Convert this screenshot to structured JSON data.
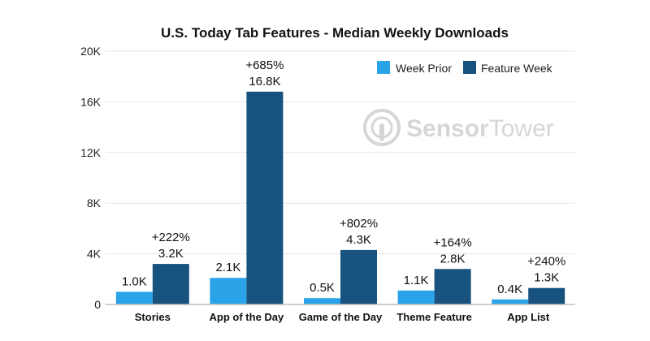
{
  "colors": {
    "week_prior": "#2aa3e8",
    "feature_week": "#17537e",
    "gridline": "#e6e6e6",
    "axis": "#bfbfbf",
    "watermark": "#d6d6d6"
  },
  "watermark": {
    "brand_bold": "Sensor",
    "brand_light": "Tower",
    "icon": "sensor-tower-logo-icon"
  },
  "chart_data": {
    "type": "bar",
    "title": "U.S. Today Tab Features - Median Weekly Downloads",
    "xlabel": "",
    "ylabel": "",
    "ylim": [
      0,
      20000
    ],
    "yticks": [
      0,
      4000,
      8000,
      12000,
      16000,
      20000
    ],
    "ytick_labels": [
      "0",
      "4K",
      "8K",
      "12K",
      "16K",
      "20K"
    ],
    "grid": true,
    "legend_position": "top-right",
    "categories": [
      "Stories",
      "App of the Day",
      "Game of the Day",
      "Theme Feature",
      "App List"
    ],
    "series": [
      {
        "name": "Week Prior",
        "values": [
          1000,
          2100,
          500,
          1100,
          400
        ],
        "labels": [
          "1.0K",
          "2.1K",
          "0.5K",
          "1.1K",
          "0.4K"
        ]
      },
      {
        "name": "Feature Week",
        "values": [
          3200,
          16800,
          4300,
          2800,
          1300
        ],
        "labels": [
          "3.2K",
          "16.8K",
          "4.3K",
          "2.8K",
          "1.3K"
        ]
      }
    ],
    "change_labels": [
      "+222%",
      "+685%",
      "+802%",
      "+164%",
      "+240%"
    ]
  }
}
